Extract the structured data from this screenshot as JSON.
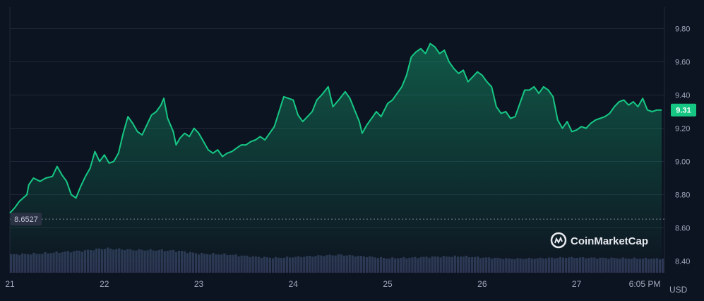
{
  "chart_data": {
    "type": "area",
    "x_tick_labels": [
      "21",
      "22",
      "23",
      "24",
      "25",
      "26",
      "27",
      "6:05 PM"
    ],
    "y_ticks": [
      9.8,
      9.6,
      9.4,
      9.2,
      9.0,
      8.8,
      8.6,
      8.4
    ],
    "y_tick_labels": [
      "9.80",
      "9.60",
      "9.40",
      "9.20",
      "9.00",
      "8.80",
      "8.60",
      "8.40"
    ],
    "ylim": [
      8.33,
      9.93
    ],
    "currency_label": "USD",
    "current_price": 9.31,
    "current_price_label": "9.31",
    "baseline_price": 8.6527,
    "baseline_price_label": "8.6527",
    "grid": true,
    "price_series": {
      "points": [
        [
          21.0,
          8.69
        ],
        [
          21.05,
          8.72
        ],
        [
          21.1,
          8.76
        ],
        [
          21.18,
          8.8
        ],
        [
          21.2,
          8.86
        ],
        [
          21.25,
          8.9
        ],
        [
          21.32,
          8.88
        ],
        [
          21.38,
          8.9
        ],
        [
          21.45,
          8.91
        ],
        [
          21.5,
          8.97
        ],
        [
          21.55,
          8.92
        ],
        [
          21.6,
          8.88
        ],
        [
          21.65,
          8.8
        ],
        [
          21.7,
          8.78
        ],
        [
          21.75,
          8.85
        ],
        [
          21.8,
          8.91
        ],
        [
          21.85,
          8.96
        ],
        [
          21.9,
          9.06
        ],
        [
          21.95,
          9.0
        ],
        [
          22.0,
          9.04
        ],
        [
          22.05,
          8.99
        ],
        [
          22.1,
          9.0
        ],
        [
          22.15,
          9.05
        ],
        [
          22.2,
          9.17
        ],
        [
          22.25,
          9.27
        ],
        [
          22.3,
          9.23
        ],
        [
          22.35,
          9.18
        ],
        [
          22.4,
          9.16
        ],
        [
          22.45,
          9.22
        ],
        [
          22.5,
          9.28
        ],
        [
          22.55,
          9.3
        ],
        [
          22.6,
          9.34
        ],
        [
          22.63,
          9.38
        ],
        [
          22.67,
          9.26
        ],
        [
          22.7,
          9.22
        ],
        [
          22.73,
          9.18
        ],
        [
          22.76,
          9.1
        ],
        [
          22.8,
          9.14
        ],
        [
          22.85,
          9.17
        ],
        [
          22.9,
          9.15
        ],
        [
          22.95,
          9.2
        ],
        [
          23.0,
          9.17
        ],
        [
          23.05,
          9.12
        ],
        [
          23.1,
          9.07
        ],
        [
          23.15,
          9.05
        ],
        [
          23.2,
          9.07
        ],
        [
          23.25,
          9.03
        ],
        [
          23.3,
          9.05
        ],
        [
          23.35,
          9.06
        ],
        [
          23.4,
          9.08
        ],
        [
          23.45,
          9.1
        ],
        [
          23.5,
          9.1
        ],
        [
          23.55,
          9.12
        ],
        [
          23.6,
          9.13
        ],
        [
          23.65,
          9.15
        ],
        [
          23.7,
          9.13
        ],
        [
          23.75,
          9.17
        ],
        [
          23.8,
          9.21
        ],
        [
          23.85,
          9.3
        ],
        [
          23.9,
          9.39
        ],
        [
          23.95,
          9.38
        ],
        [
          24.0,
          9.37
        ],
        [
          24.05,
          9.28
        ],
        [
          24.1,
          9.24
        ],
        [
          24.15,
          9.27
        ],
        [
          24.2,
          9.3
        ],
        [
          24.25,
          9.37
        ],
        [
          24.3,
          9.4
        ],
        [
          24.37,
          9.45
        ],
        [
          24.42,
          9.33
        ],
        [
          24.48,
          9.37
        ],
        [
          24.55,
          9.42
        ],
        [
          24.6,
          9.38
        ],
        [
          24.65,
          9.31
        ],
        [
          24.7,
          9.24
        ],
        [
          24.73,
          9.17
        ],
        [
          24.78,
          9.22
        ],
        [
          24.83,
          9.26
        ],
        [
          24.88,
          9.3
        ],
        [
          24.93,
          9.27
        ],
        [
          25.0,
          9.35
        ],
        [
          25.05,
          9.37
        ],
        [
          25.1,
          9.41
        ],
        [
          25.15,
          9.45
        ],
        [
          25.2,
          9.52
        ],
        [
          25.25,
          9.63
        ],
        [
          25.3,
          9.66
        ],
        [
          25.35,
          9.68
        ],
        [
          25.4,
          9.65
        ],
        [
          25.45,
          9.71
        ],
        [
          25.5,
          9.69
        ],
        [
          25.55,
          9.65
        ],
        [
          25.6,
          9.67
        ],
        [
          25.65,
          9.6
        ],
        [
          25.7,
          9.56
        ],
        [
          25.75,
          9.53
        ],
        [
          25.8,
          9.55
        ],
        [
          25.85,
          9.48
        ],
        [
          25.9,
          9.51
        ],
        [
          25.95,
          9.54
        ],
        [
          26.0,
          9.52
        ],
        [
          26.05,
          9.48
        ],
        [
          26.1,
          9.45
        ],
        [
          26.15,
          9.33
        ],
        [
          26.2,
          9.29
        ],
        [
          26.25,
          9.3
        ],
        [
          26.3,
          9.26
        ],
        [
          26.35,
          9.27
        ],
        [
          26.4,
          9.35
        ],
        [
          26.45,
          9.43
        ],
        [
          26.5,
          9.43
        ],
        [
          26.55,
          9.45
        ],
        [
          26.6,
          9.41
        ],
        [
          26.65,
          9.45
        ],
        [
          26.7,
          9.43
        ],
        [
          26.75,
          9.39
        ],
        [
          26.8,
          9.25
        ],
        [
          26.85,
          9.2
        ],
        [
          26.9,
          9.24
        ],
        [
          26.95,
          9.18
        ],
        [
          27.0,
          9.19
        ],
        [
          27.05,
          9.21
        ],
        [
          27.1,
          9.2
        ],
        [
          27.15,
          9.23
        ],
        [
          27.2,
          9.25
        ],
        [
          27.25,
          9.26
        ],
        [
          27.3,
          9.27
        ],
        [
          27.35,
          9.29
        ],
        [
          27.4,
          9.33
        ],
        [
          27.45,
          9.36
        ],
        [
          27.5,
          9.37
        ],
        [
          27.55,
          9.34
        ],
        [
          27.6,
          9.36
        ],
        [
          27.65,
          9.33
        ],
        [
          27.7,
          9.38
        ],
        [
          27.75,
          9.31
        ],
        [
          27.8,
          9.3
        ],
        [
          27.85,
          9.31
        ],
        [
          27.9,
          9.31
        ]
      ]
    },
    "volume_series": {
      "points": [
        [
          21.0,
          0.48
        ],
        [
          21.3,
          0.5
        ],
        [
          21.6,
          0.55
        ],
        [
          21.8,
          0.58
        ],
        [
          22.0,
          0.64
        ],
        [
          22.3,
          0.6
        ],
        [
          22.6,
          0.59
        ],
        [
          22.8,
          0.57
        ],
        [
          23.0,
          0.5
        ],
        [
          23.3,
          0.48
        ],
        [
          23.6,
          0.42
        ],
        [
          23.8,
          0.39
        ],
        [
          24.0,
          0.41
        ],
        [
          24.3,
          0.45
        ],
        [
          24.5,
          0.47
        ],
        [
          24.8,
          0.42
        ],
        [
          25.0,
          0.38
        ],
        [
          25.3,
          0.4
        ],
        [
          25.5,
          0.42
        ],
        [
          25.8,
          0.43
        ],
        [
          26.0,
          0.4
        ],
        [
          26.3,
          0.37
        ],
        [
          26.6,
          0.38
        ],
        [
          26.9,
          0.4
        ],
        [
          27.2,
          0.39
        ],
        [
          27.5,
          0.38
        ],
        [
          27.9,
          0.37
        ]
      ],
      "axis": "none"
    },
    "colors": {
      "background": "#0d1421",
      "line": "#16c784",
      "volume": "#2d3653",
      "grid": "#1f2637",
      "text": "#a1a7bb"
    }
  },
  "watermark": {
    "text": "CoinMarketCap",
    "icon": "coinmarketcap-logo-icon"
  }
}
